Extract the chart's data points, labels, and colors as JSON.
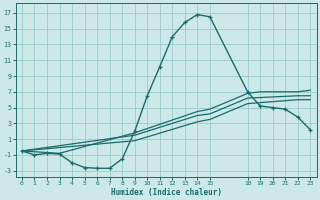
{
  "xlabel": "Humidex (Indice chaleur)",
  "background_color": "#cce8e8",
  "grid_color": "#99cccc",
  "line_color": "#1a6b6b",
  "xlim": [
    -0.5,
    23.5
  ],
  "ylim": [
    -3.8,
    18.2
  ],
  "xticks": [
    0,
    1,
    2,
    3,
    4,
    5,
    6,
    7,
    8,
    9,
    10,
    11,
    12,
    13,
    14,
    15,
    18,
    19,
    20,
    21,
    22,
    23
  ],
  "yticks": [
    -3,
    -1,
    1,
    3,
    5,
    7,
    9,
    11,
    13,
    15,
    17
  ],
  "line1_x": [
    0,
    1,
    2,
    3,
    4,
    5,
    6,
    7,
    8,
    9,
    10,
    11,
    12,
    13,
    14,
    15,
    18,
    19,
    20,
    21,
    22,
    23
  ],
  "line1_y": [
    -0.5,
    -1.0,
    -0.8,
    -0.9,
    -2.0,
    -2.6,
    -2.7,
    -2.7,
    -1.5,
    2.0,
    6.5,
    10.2,
    14.0,
    15.8,
    16.8,
    16.5,
    7.0,
    5.2,
    5.0,
    4.8,
    3.8,
    2.2
  ],
  "line2_x": [
    0,
    3,
    9,
    14,
    15,
    18,
    19,
    20,
    21,
    22,
    23
  ],
  "line2_y": [
    -0.5,
    -0.8,
    1.8,
    4.5,
    4.8,
    6.8,
    7.0,
    7.0,
    7.0,
    7.0,
    7.2
  ],
  "line3_x": [
    0,
    9,
    14,
    15,
    18,
    22,
    23
  ],
  "line3_y": [
    -0.5,
    1.5,
    4.0,
    4.2,
    6.2,
    6.5,
    6.5
  ],
  "line4_x": [
    0,
    9,
    14,
    15,
    18,
    22,
    23
  ],
  "line4_y": [
    -0.5,
    0.8,
    3.2,
    3.5,
    5.5,
    6.0,
    6.0
  ]
}
